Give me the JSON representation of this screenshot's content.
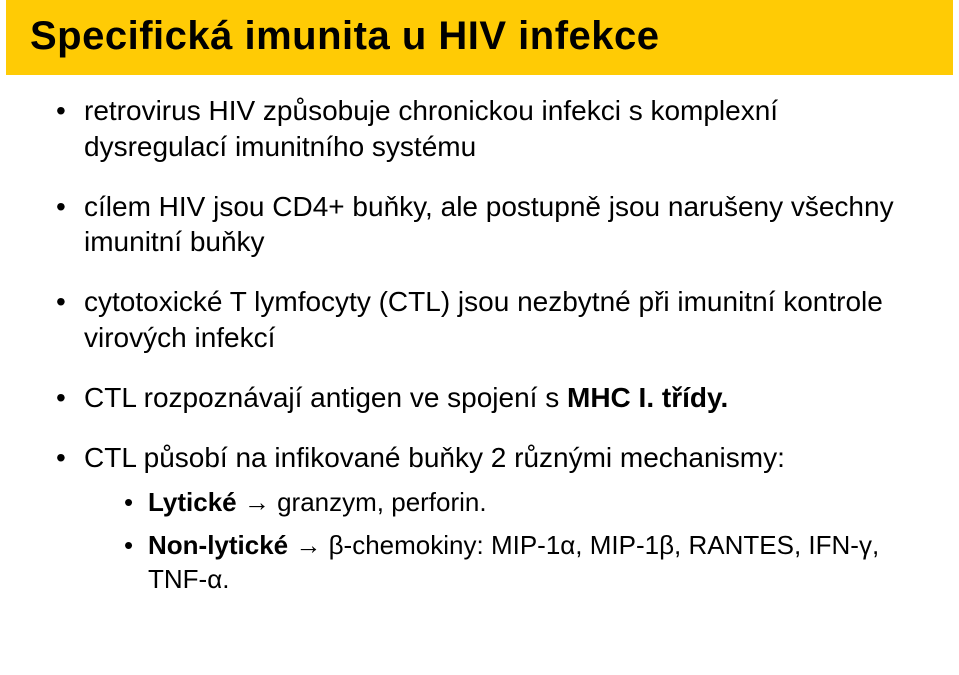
{
  "title": "Specifická imunita u HIV infekce",
  "bullets": [
    {
      "text_parts": [
        "retrovirus HIV způsobuje chronickou infekci s komplexní dysregulací imunitního systému"
      ]
    },
    {
      "text_parts": [
        "cílem HIV jsou CD4+ buňky, ale postupně jsou narušeny všechny imunitní buňky"
      ]
    },
    {
      "text_parts": [
        "cytotoxické T lymfocyty (CTL) jsou nezbytné při imunitní kontrole virových infekcí"
      ]
    },
    {
      "text_parts": [
        "CTL rozpoznávají antigen ve spojení s ",
        {
          "bold": true,
          "text": "MHC I. třídy."
        }
      ]
    },
    {
      "text_parts": [
        "CTL působí na infikované buňky 2 různými mechanismy:"
      ],
      "sub": [
        {
          "text_parts": [
            {
              "bold": true,
              "text": "Lytické"
            },
            " → granzym, perforin."
          ]
        },
        {
          "text_parts": [
            {
              "bold": true,
              "text": "Non-lytické"
            },
            " → β-chemokiny: MIP-1α, MIP-1β, RANTES, IFN-γ, TNF-α."
          ]
        }
      ]
    }
  ],
  "colors": {
    "title_bg": "#ffcb05",
    "text": "#000000",
    "bg": "#ffffff"
  }
}
